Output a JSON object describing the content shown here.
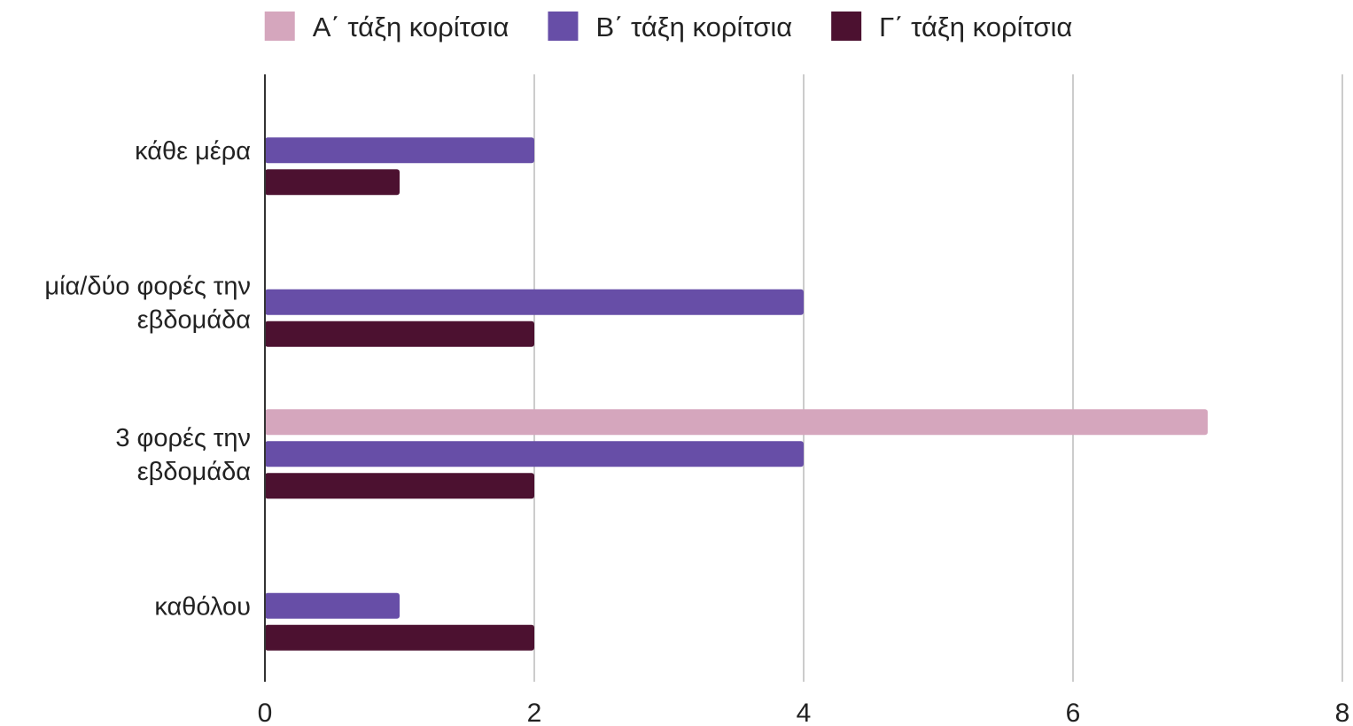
{
  "chart_data": {
    "type": "bar",
    "orientation": "horizontal",
    "categories": [
      [
        "κάθε μέρα"
      ],
      [
        "μία/δύο φορές την",
        "εβδομάδα"
      ],
      [
        "3 φορές την",
        "εβδομάδα"
      ],
      [
        "καθόλου"
      ]
    ],
    "series": [
      {
        "name": "Α΄ τάξη κορίτσια",
        "color": "#d5a6bd",
        "values": [
          0,
          0,
          7,
          0
        ]
      },
      {
        "name": "Β΄ τάξη κορίτσια",
        "color": "#674ea7",
        "values": [
          2,
          4,
          4,
          1
        ]
      },
      {
        "name": "Γ΄ τάξη κορίτσια",
        "color": "#4c1130",
        "values": [
          1,
          2,
          2,
          2
        ]
      }
    ],
    "xlim": [
      0,
      8
    ],
    "xticks": [
      "0",
      "2",
      "4",
      "6",
      "8"
    ],
    "grid": true,
    "legend": "top",
    "title": "",
    "xlabel": "",
    "ylabel": ""
  }
}
